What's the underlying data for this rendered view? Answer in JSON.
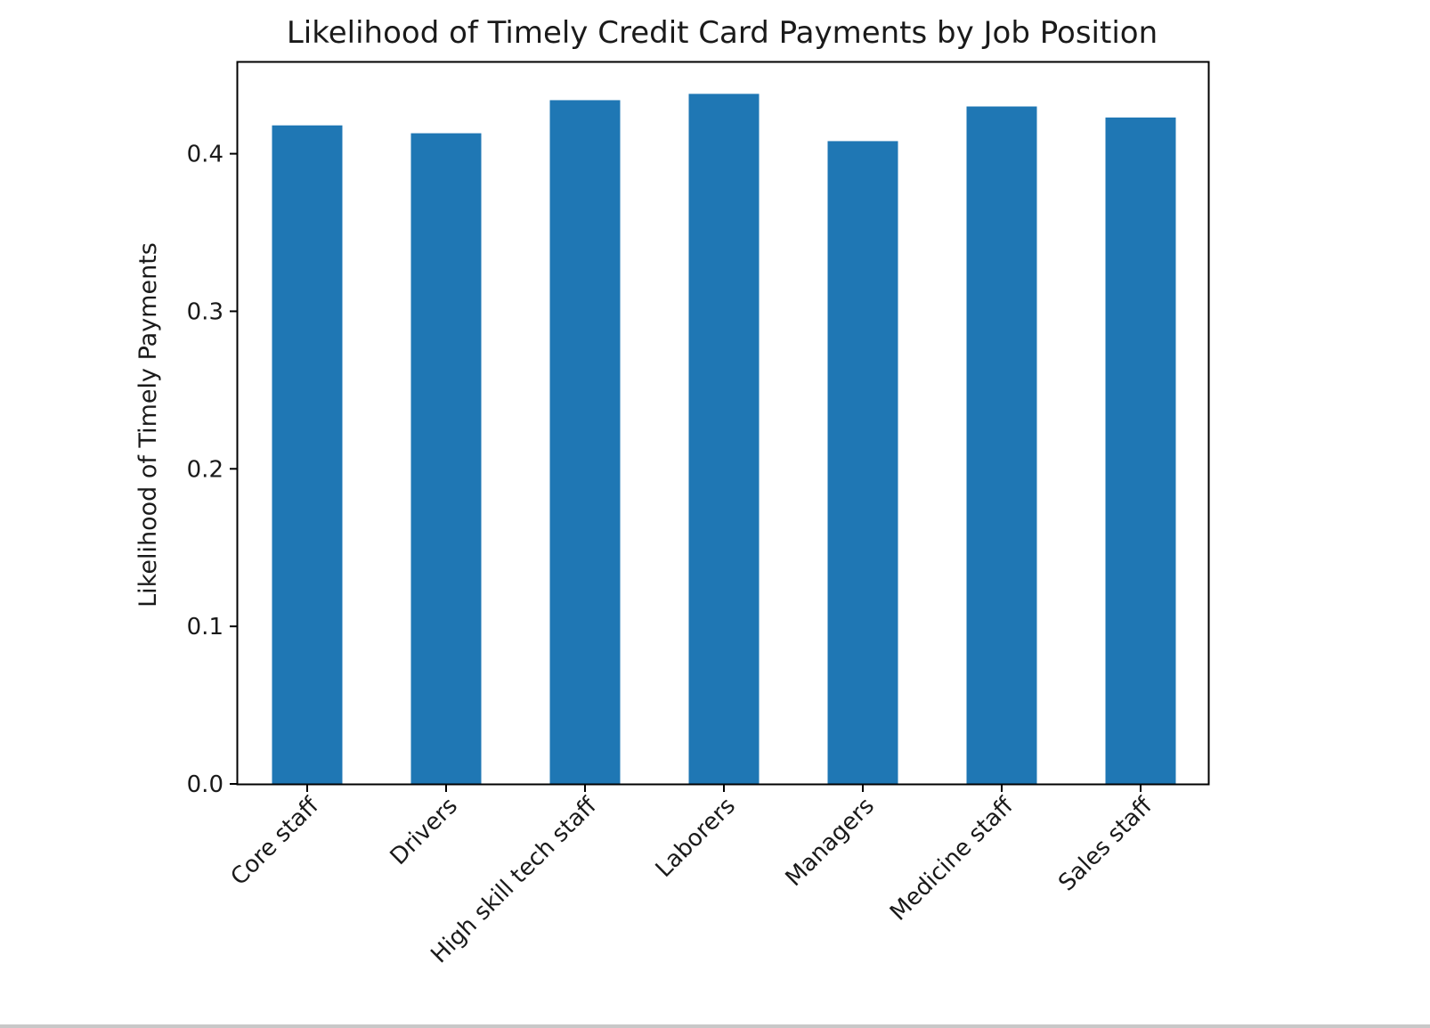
{
  "chart_data": {
    "type": "bar",
    "title": "Likelihood of Timely Credit Card Payments by Job Position",
    "xlabel": "",
    "ylabel": "Likelihood of Timely Payments",
    "categories": [
      "Core staff",
      "Drivers",
      "High skill tech staff",
      "Laborers",
      "Managers",
      "Medicine staff",
      "Sales staff"
    ],
    "values": [
      0.418,
      0.413,
      0.434,
      0.438,
      0.408,
      0.43,
      0.423
    ],
    "ylim": [
      0,
      0.458
    ],
    "yticks": [
      "0.0",
      "0.1",
      "0.2",
      "0.3",
      "0.4"
    ],
    "ytick_values": [
      0.0,
      0.1,
      0.2,
      0.3,
      0.4
    ],
    "bar_color": "#1f77b4",
    "grid": false,
    "legend": "none"
  }
}
